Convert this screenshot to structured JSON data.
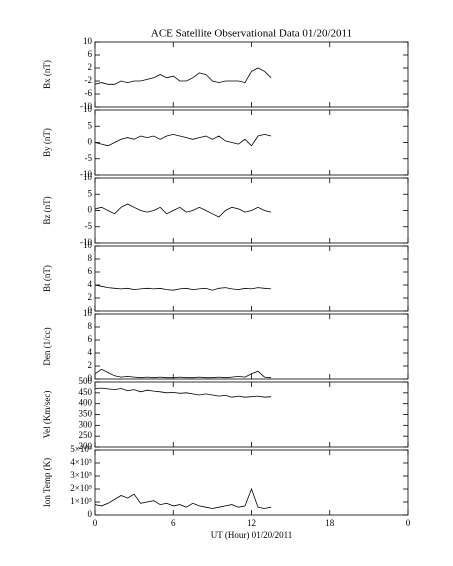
{
  "chart_data": [
    {
      "type": "line",
      "title": "ACE Satellite Observational Data   01/20/2011",
      "ylabel": "Bx (nT)",
      "x": [
        0,
        0.5,
        1,
        1.5,
        2,
        2.5,
        3,
        3.5,
        4,
        4.5,
        5,
        5.5,
        6,
        6.5,
        7,
        7.5,
        8,
        8.5,
        9,
        9.5,
        10,
        10.5,
        11,
        11.5,
        12,
        12.5,
        13,
        13.5
      ],
      "series": [
        {
          "color": "#000000",
          "values": [
            -3,
            -2.5,
            -3,
            -3,
            -2,
            -2.5,
            -2,
            -2,
            -1.5,
            -1,
            0,
            -1,
            -0.5,
            -2,
            -2,
            -1,
            0.5,
            0,
            -2,
            -2.5,
            -2,
            -2,
            -2,
            -2.5,
            1,
            2,
            1,
            -1
          ]
        }
      ],
      "xlim": [
        0,
        24
      ],
      "xticks": [
        0,
        6,
        12,
        18,
        24
      ],
      "ylim": [
        -10,
        10
      ],
      "yticks": [
        -10,
        -6,
        -2,
        2,
        6,
        10
      ]
    },
    {
      "type": "line",
      "ylabel": "By (nT)",
      "x": [
        0,
        0.5,
        1,
        1.5,
        2,
        2.5,
        3,
        3.5,
        4,
        4.5,
        5,
        5.5,
        6,
        6.5,
        7,
        7.5,
        8,
        8.5,
        9,
        9.5,
        10,
        10.5,
        11,
        11.5,
        12,
        12.5,
        13,
        13.5
      ],
      "series": [
        {
          "color": "#000000",
          "values": [
            0,
            -0.5,
            -1,
            0,
            1,
            1.5,
            1,
            2,
            1.5,
            2,
            1,
            2,
            2.5,
            2,
            1.5,
            1,
            1.5,
            2,
            1,
            2,
            0.5,
            0,
            -0.5,
            1,
            -1,
            2,
            2.5,
            2
          ]
        }
      ],
      "xlim": [
        0,
        24
      ],
      "xticks": [
        0,
        6,
        12,
        18,
        24
      ],
      "ylim": [
        -10,
        10
      ],
      "yticks": [
        -10,
        -5,
        0,
        5,
        10
      ]
    },
    {
      "type": "line",
      "ylabel": "Bz (nT)",
      "x": [
        0,
        0.5,
        1,
        1.5,
        2,
        2.5,
        3,
        3.5,
        4,
        4.5,
        5,
        5.5,
        6,
        6.5,
        7,
        7.5,
        8,
        8.5,
        9,
        9.5,
        10,
        10.5,
        11,
        11.5,
        12,
        12.5,
        13,
        13.5
      ],
      "series": [
        {
          "color": "#000000",
          "values": [
            0.5,
            1,
            0,
            -1,
            1,
            2,
            1,
            0,
            -0.5,
            0,
            1,
            -1,
            0,
            1,
            -0.5,
            0,
            1,
            0,
            -1,
            -2,
            0,
            1,
            0.5,
            -0.5,
            0,
            1,
            0,
            -0.5
          ]
        }
      ],
      "xlim": [
        0,
        24
      ],
      "xticks": [
        0,
        6,
        12,
        18,
        24
      ],
      "ylim": [
        -10,
        10
      ],
      "yticks": [
        -10,
        -5,
        0,
        5,
        10
      ]
    },
    {
      "type": "line",
      "ylabel": "Bt (nT)",
      "x": [
        0,
        0.5,
        1,
        1.5,
        2,
        2.5,
        3,
        3.5,
        4,
        4.5,
        5,
        5.5,
        6,
        6.5,
        7,
        7.5,
        8,
        8.5,
        9,
        9.5,
        10,
        10.5,
        11,
        11.5,
        12,
        12.5,
        13,
        13.5
      ],
      "series": [
        {
          "color": "#000000",
          "values": [
            4,
            3.8,
            3.6,
            3.5,
            3.4,
            3.5,
            3.3,
            3.4,
            3.5,
            3.4,
            3.5,
            3.3,
            3.2,
            3.4,
            3.5,
            3.3,
            3.4,
            3.5,
            3.2,
            3.5,
            3.6,
            3.4,
            3.3,
            3.5,
            3.4,
            3.6,
            3.5,
            3.4
          ]
        }
      ],
      "xlim": [
        0,
        24
      ],
      "xticks": [
        0,
        6,
        12,
        18,
        24
      ],
      "ylim": [
        0,
        10
      ],
      "yticks": [
        0,
        2,
        4,
        6,
        8,
        10
      ]
    },
    {
      "type": "line",
      "ylabel": "Den (1/cc)",
      "x": [
        0,
        0.5,
        1,
        1.5,
        2,
        2.5,
        3,
        3.5,
        4,
        4.5,
        5,
        5.5,
        6,
        6.5,
        7,
        7.5,
        8,
        8.5,
        9,
        9.5,
        10,
        10.5,
        11,
        11.5,
        12,
        12.5,
        13,
        13.5
      ],
      "series": [
        {
          "color": "#000000",
          "values": [
            0.8,
            1.5,
            1,
            0.5,
            0.3,
            0.4,
            0.3,
            0.2,
            0.3,
            0.2,
            0.3,
            0.2,
            0.2,
            0.3,
            0.2,
            0.2,
            0.3,
            0.2,
            0.2,
            0.3,
            0.2,
            0.3,
            0.4,
            0.3,
            0.8,
            1.2,
            0.3,
            0.2
          ]
        }
      ],
      "xlim": [
        0,
        24
      ],
      "xticks": [
        0,
        6,
        12,
        18,
        24
      ],
      "ylim": [
        0,
        10
      ],
      "yticks": [
        0,
        2,
        4,
        6,
        8,
        10
      ]
    },
    {
      "type": "line",
      "ylabel": "Vel (Km/sec)",
      "x": [
        0,
        0.5,
        1,
        1.5,
        2,
        2.5,
        3,
        3.5,
        4,
        4.5,
        5,
        5.5,
        6,
        6.5,
        7,
        7.5,
        8,
        8.5,
        9,
        9.5,
        10,
        10.5,
        11,
        11.5,
        12,
        12.5,
        13,
        13.5
      ],
      "series": [
        {
          "color": "#000000",
          "values": [
            470,
            472,
            468,
            465,
            470,
            460,
            465,
            455,
            462,
            458,
            455,
            450,
            452,
            448,
            450,
            445,
            440,
            445,
            440,
            435,
            438,
            430,
            435,
            430,
            432,
            435,
            430,
            432
          ]
        }
      ],
      "xlim": [
        0,
        24
      ],
      "xticks": [
        0,
        6,
        12,
        18,
        24
      ],
      "ylim": [
        200,
        500
      ],
      "yticks": [
        200,
        250,
        300,
        350,
        400,
        450,
        500
      ]
    },
    {
      "type": "line",
      "ylabel": "Ion Temp (K)",
      "xlabel": "UT (Hour)   01/20/2011",
      "x": [
        0,
        0.5,
        1,
        1.5,
        2,
        2.5,
        3,
        3.5,
        4,
        4.5,
        5,
        5.5,
        6,
        6.5,
        7,
        7.5,
        8,
        8.5,
        9,
        9.5,
        10,
        10.5,
        11,
        11.5,
        12,
        12.5,
        13,
        13.5
      ],
      "series": [
        {
          "color": "#000000",
          "values": [
            80000,
            70000,
            90000,
            120000,
            150000,
            130000,
            160000,
            90000,
            100000,
            110000,
            80000,
            90000,
            70000,
            80000,
            60000,
            90000,
            70000,
            60000,
            50000,
            60000,
            70000,
            80000,
            60000,
            70000,
            200000,
            60000,
            50000,
            60000
          ]
        }
      ],
      "xlim": [
        0,
        24
      ],
      "xticks": [
        0,
        6,
        12,
        18,
        {
          "value": 24,
          "label": "0"
        }
      ],
      "ylim": [
        0,
        500000
      ],
      "yticks": [
        0,
        {
          "value": 100000,
          "label": "1×10⁵"
        },
        {
          "value": 200000,
          "label": "2×10⁵"
        },
        {
          "value": 300000,
          "label": "3×10⁵"
        },
        {
          "value": 400000,
          "label": "4×10⁵"
        },
        {
          "value": 500000,
          "label": "5×10⁵"
        }
      ]
    }
  ]
}
